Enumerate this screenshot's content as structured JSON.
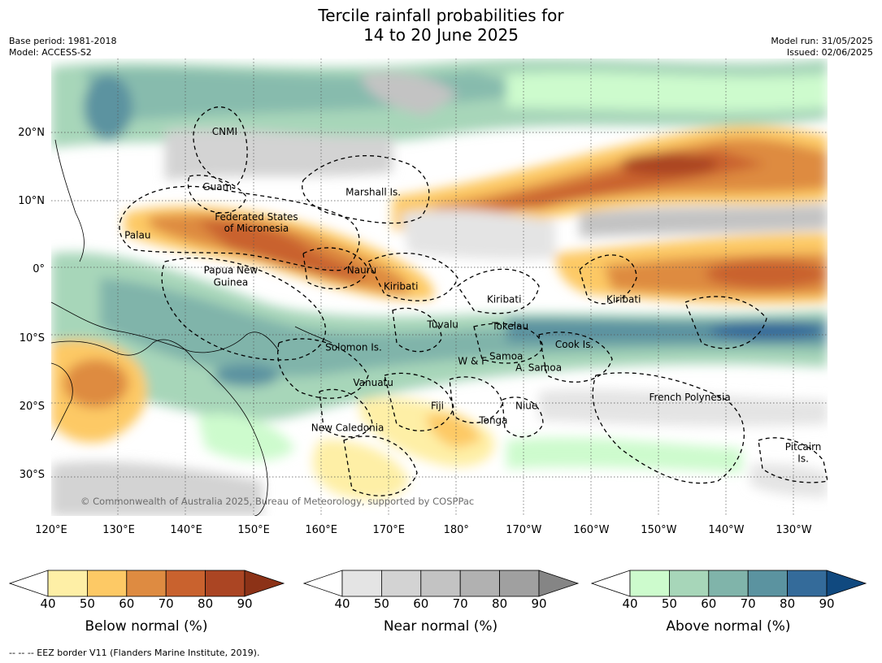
{
  "header": {
    "title_line1": "Tercile rainfall probabilities for",
    "title_line2": "14 to 20 June 2025",
    "base_period": "Base period: 1981-2018",
    "model": "Model: ACCESS-S2",
    "model_run": "Model run: 31/05/2025",
    "issued": "Issued: 02/06/2025"
  },
  "map": {
    "lon_range": [
      120,
      235
    ],
    "lat_range": [
      -36,
      31
    ],
    "x_ticks": [
      {
        "lon": 120,
        "label": "120°E"
      },
      {
        "lon": 130,
        "label": "130°E"
      },
      {
        "lon": 140,
        "label": "140°E"
      },
      {
        "lon": 150,
        "label": "150°E"
      },
      {
        "lon": 160,
        "label": "160°E"
      },
      {
        "lon": 170,
        "label": "170°E"
      },
      {
        "lon": 180,
        "label": "180°"
      },
      {
        "lon": 190,
        "label": "170°W"
      },
      {
        "lon": 200,
        "label": "160°W"
      },
      {
        "lon": 210,
        "label": "150°W"
      },
      {
        "lon": 220,
        "label": "140°W"
      },
      {
        "lon": 230,
        "label": "130°W"
      }
    ],
    "y_ticks": [
      {
        "lat": 20,
        "label": "20°N"
      },
      {
        "lat": 10,
        "label": "10°N"
      },
      {
        "lat": 0,
        "label": "0°"
      },
      {
        "lat": -10,
        "label": "10°S"
      },
      {
        "lat": -20,
        "label": "20°S"
      },
      {
        "lat": -30,
        "label": "30°S"
      }
    ],
    "region_labels": [
      {
        "text": "CNMI",
        "lon": 145.7,
        "lat": 20.3
      },
      {
        "text": "Guam",
        "lon": 144.6,
        "lat": 12.2
      },
      {
        "text": "Marshall Is.",
        "lon": 167.7,
        "lat": 11.4
      },
      {
        "text": "Federated States",
        "lon": 150.4,
        "lat": 7.8
      },
      {
        "text": "of Micronesia",
        "lon": 150.4,
        "lat": 6.1
      },
      {
        "text": "Palau",
        "lon": 132.8,
        "lat": 5.1
      },
      {
        "text": "Papua New",
        "lon": 146.6,
        "lat": 0.0
      },
      {
        "text": "Guinea",
        "lon": 146.6,
        "lat": -1.8
      },
      {
        "text": "Nauru",
        "lon": 166.0,
        "lat": 0.0
      },
      {
        "text": "Kiribati",
        "lon": 171.8,
        "lat": -2.4
      },
      {
        "text": "Kiribati",
        "lon": 187.1,
        "lat": -4.3
      },
      {
        "text": "Kiribati",
        "lon": 204.8,
        "lat": -4.3
      },
      {
        "text": "Tuvalu",
        "lon": 178.0,
        "lat": -8.0
      },
      {
        "text": "Tokelau",
        "lon": 188.0,
        "lat": -8.2
      },
      {
        "text": "Solomon Is.",
        "lon": 164.8,
        "lat": -11.3
      },
      {
        "text": "Cook Is.",
        "lon": 197.5,
        "lat": -10.9
      },
      {
        "text": "Samoa",
        "lon": 187.4,
        "lat": -12.6
      },
      {
        "text": "W & F",
        "lon": 182.4,
        "lat": -13.3
      },
      {
        "text": "A. Samoa",
        "lon": 192.2,
        "lat": -14.3
      },
      {
        "text": "Vanuatu",
        "lon": 167.7,
        "lat": -16.5
      },
      {
        "text": "French Polynesia",
        "lon": 214.6,
        "lat": -18.6
      },
      {
        "text": "Fiji",
        "lon": 177.2,
        "lat": -19.9
      },
      {
        "text": "Niue",
        "lon": 190.4,
        "lat": -19.9
      },
      {
        "text": "Tonga",
        "lon": 185.5,
        "lat": -22.0
      },
      {
        "text": "New Caledonia",
        "lon": 163.9,
        "lat": -23.1
      },
      {
        "text": "Pitcairn",
        "lon": 231.4,
        "lat": -25.9
      },
      {
        "text": "Is.",
        "lon": 231.4,
        "lat": -27.6
      }
    ],
    "copyright": "© Commonwealth of Australia 2025, Bureau of Meteorology, supported by COSPPac",
    "grid": "dotted"
  },
  "colorbars": [
    {
      "title": "Below normal (%)",
      "ticks": [
        "40",
        "50",
        "60",
        "70",
        "80",
        "90"
      ],
      "colors": [
        "#ffffff",
        "#feefa6",
        "#fdc965",
        "#de8b41",
        "#c9622e",
        "#ab4523",
        "#8c3217"
      ]
    },
    {
      "title": "Near normal (%)",
      "ticks": [
        "40",
        "50",
        "60",
        "70",
        "80",
        "90"
      ],
      "colors": [
        "#ffffff",
        "#e4e4e4",
        "#d3d3d3",
        "#c3c3c3",
        "#b1b1b1",
        "#a0a0a0",
        "#858585"
      ]
    },
    {
      "title": "Above normal (%)",
      "ticks": [
        "40",
        "50",
        "60",
        "70",
        "80",
        "90"
      ],
      "colors": [
        "#ffffff",
        "#cdfbcd",
        "#a7d6b9",
        "#80b4aa",
        "#5b93a0",
        "#346b9a",
        "#10497f"
      ]
    }
  ],
  "footnote": "--  --  -- EEZ border V11 (Flanders Marine Institute, 2019)."
}
